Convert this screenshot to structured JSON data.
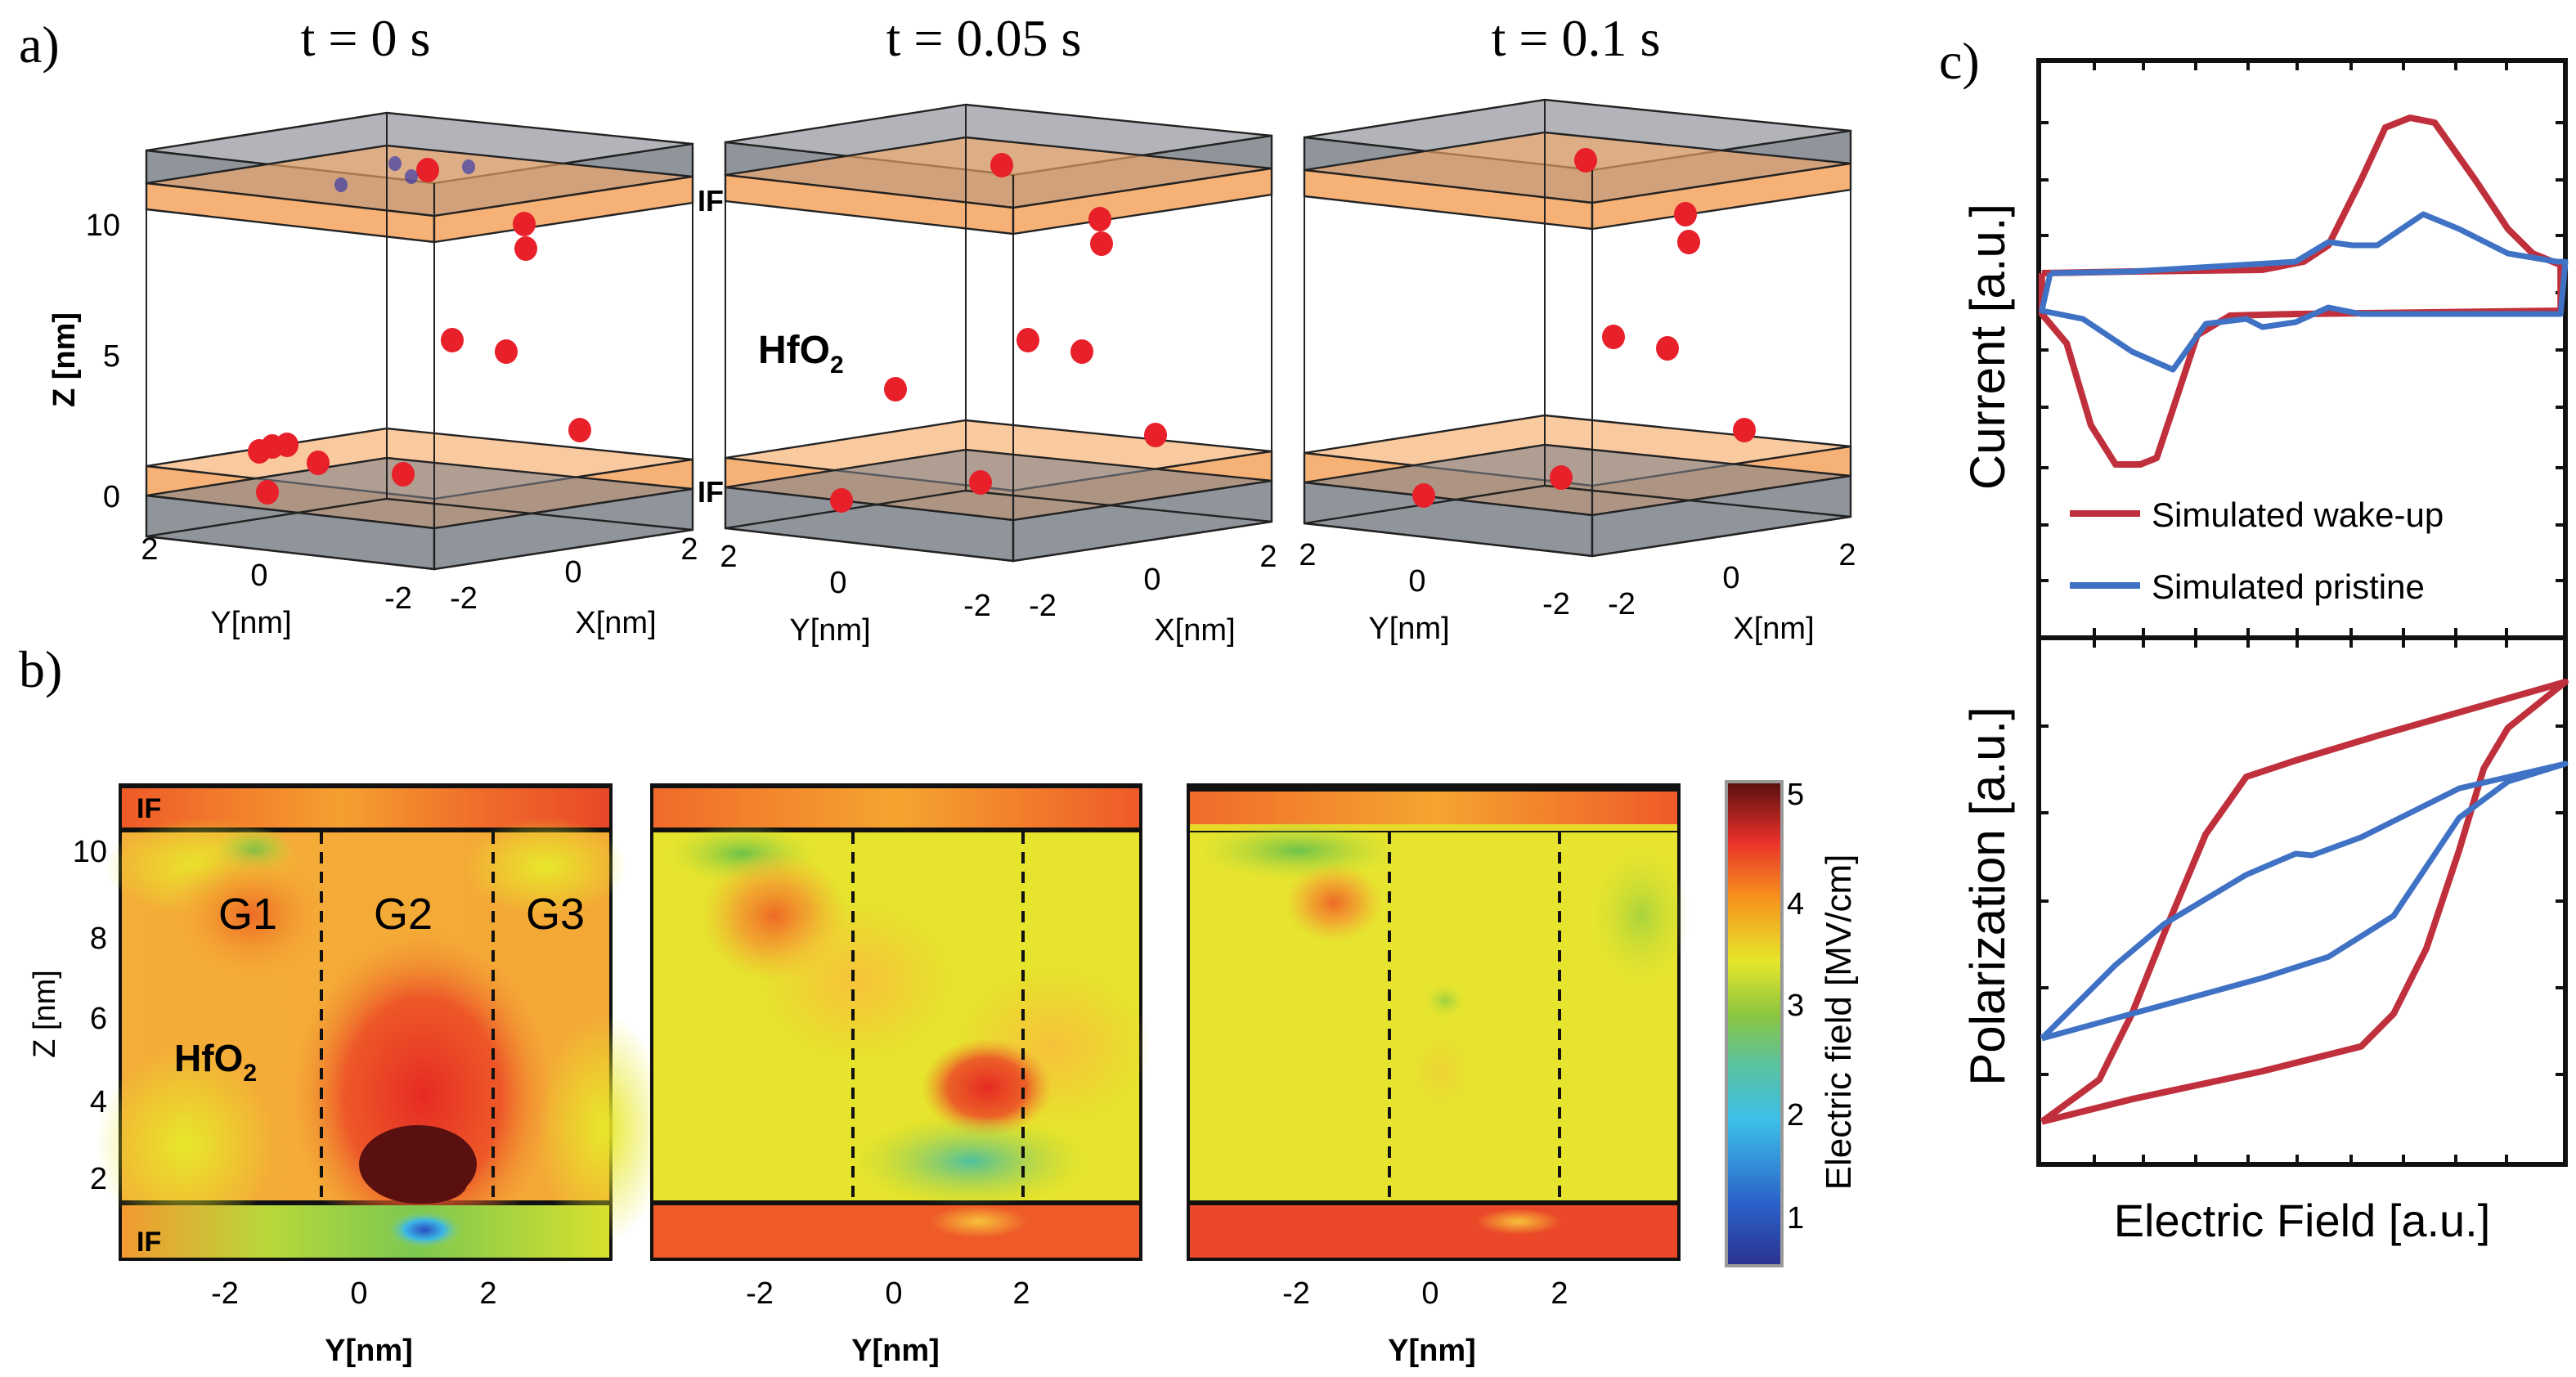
{
  "panel_labels": {
    "a": "a)",
    "b": "b)",
    "c": "c)"
  },
  "panel_a": {
    "titles": [
      "t = 0 s",
      "t = 0.05 s",
      "t = 0.1 s"
    ],
    "z_axis_label": "Z [nm]",
    "z_ticks": [
      "10",
      "5",
      "0"
    ],
    "y_axis_label": "Y[nm]",
    "x_axis_label": "X[nm]",
    "y_ticks": [
      "2",
      "0",
      "-2"
    ],
    "x_ticks": [
      "-2",
      "0",
      "2"
    ],
    "if_label": "IF",
    "material_label": "HfO",
    "material_subscript": "2",
    "colors": {
      "electrode": "#7d8189",
      "interface": "#f5a968",
      "vacancy": "#e8202a",
      "oxygen_ion": "#3a3aa8"
    }
  },
  "panel_b": {
    "z_axis_label": "Z [nm]",
    "z_ticks": [
      "10",
      "8",
      "6",
      "4",
      "2"
    ],
    "y_axis_label": "Y[nm]",
    "y_ticks": [
      "-2",
      "0",
      "2"
    ],
    "if_label": "IF",
    "grain_labels": [
      "G1",
      "G2",
      "G3"
    ],
    "material_label": "HfO",
    "material_subscript": "2",
    "colorbar": {
      "label": "Electric field [MV/cm]",
      "ticks": [
        "5",
        "4",
        "3",
        "2",
        "1"
      ],
      "range": [
        0.5,
        5.1
      ],
      "colormap": "jet"
    }
  },
  "chart_data": [
    {
      "type": "line",
      "panel": "c-top",
      "ylabel": "Current [a.u.]",
      "xlabel": "",
      "xlim": [
        0,
        10
      ],
      "ylim": [
        -2.12,
        1.41
      ],
      "ticks_labeled": false,
      "legend_placement": "bottom",
      "series": [
        {
          "name": "Simulated wake-up",
          "color": "#c0303c",
          "x": [
            0.06,
            1.77,
            4.25,
            5.03,
            5.5,
            6.12,
            6.58,
            7.05,
            7.52,
            8.29,
            8.91,
            9.38,
            9.91,
            9.91,
            4.88,
            3.63,
            3.01,
            2.55,
            2.24,
            1.93,
            1.46,
            0.99,
            0.53,
            0.06,
            0.06
          ],
          "y": [
            0.11,
            0.12,
            0.13,
            0.18,
            0.28,
            0.68,
            1.0,
            1.06,
            1.03,
            0.68,
            0.38,
            0.23,
            0.16,
            -0.12,
            -0.14,
            -0.15,
            -0.27,
            -0.72,
            -1.02,
            -1.06,
            -1.06,
            -0.82,
            -0.32,
            -0.14,
            0.11
          ]
        },
        {
          "name": "Simulated pristine",
          "color": "#3f72c4",
          "x": [
            0.22,
            1.77,
            4.88,
            5.5,
            5.96,
            6.43,
            7.3,
            7.98,
            8.91,
            9.84,
            10,
            9.91,
            6.12,
            5.5,
            4.88,
            4.25,
            3.94,
            3.17,
            2.55,
            1.77,
            0.84,
            0.06,
            0.22
          ],
          "y": [
            0.11,
            0.12,
            0.18,
            0.3,
            0.28,
            0.28,
            0.47,
            0.38,
            0.23,
            0.18,
            0.18,
            -0.14,
            -0.14,
            -0.1,
            -0.19,
            -0.22,
            -0.17,
            -0.2,
            -0.48,
            -0.37,
            -0.17,
            -0.12,
            0.11
          ]
        }
      ]
    },
    {
      "type": "line",
      "panel": "c-bottom",
      "ylabel": "Polarization [a.u.]",
      "xlabel": "Electric Field [a.u.]",
      "xlim": [
        0,
        10
      ],
      "ylim": [
        0,
        10
      ],
      "ticks_labeled": false,
      "series": [
        {
          "color": "#c0303c",
          "x": [
            0.06,
            1.77,
            4.25,
            6.12,
            6.74,
            7.36,
            7.98,
            8.45,
            8.91,
            10,
            6.43,
            4.88,
            3.94,
            3.17,
            2.39,
            1.77,
            1.15,
            0.06
          ],
          "y": [
            0.81,
            1.24,
            1.77,
            2.24,
            2.86,
            4.1,
            5.96,
            7.52,
            8.29,
            9.16,
            8.14,
            7.67,
            7.36,
            6.27,
            4.41,
            2.86,
            1.61,
            0.81
          ]
        },
        {
          "color": "#3f72c4",
          "x": [
            0.06,
            1.77,
            4.25,
            5.5,
            6.74,
            7.98,
            8.91,
            10,
            7.98,
            6.12,
            5.19,
            4.88,
            3.94,
            2.39,
            1.46,
            0.06
          ],
          "y": [
            2.39,
            2.86,
            3.54,
            3.94,
            4.72,
            6.58,
            7.27,
            7.61,
            7.14,
            6.21,
            5.87,
            5.9,
            5.5,
            4.57,
            3.79,
            2.39
          ]
        }
      ]
    }
  ]
}
